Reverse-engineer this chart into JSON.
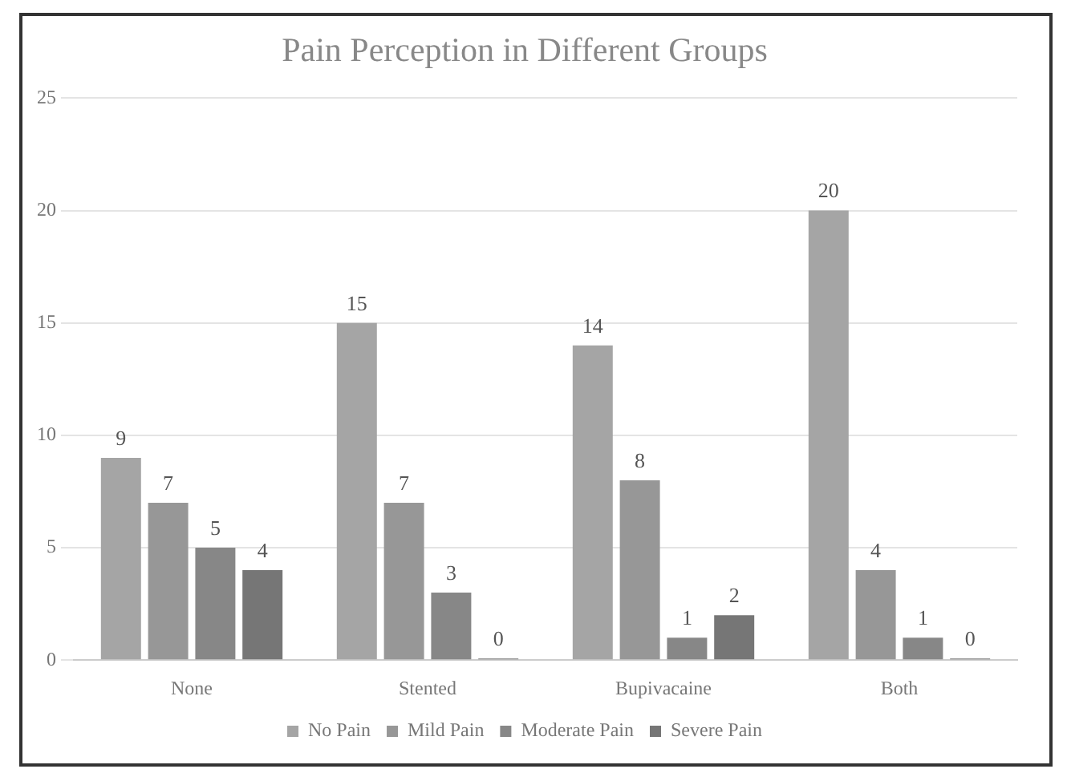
{
  "chart_data": {
    "type": "bar",
    "title": "Pain Perception in Different Groups",
    "categories": [
      "None",
      "Stented",
      "Bupivacaine",
      "Both"
    ],
    "series": [
      {
        "name": "No Pain",
        "color": "#a5a5a5",
        "values": [
          9,
          15,
          14,
          20
        ]
      },
      {
        "name": "Mild Pain",
        "color": "#979797",
        "values": [
          7,
          7,
          8,
          4
        ]
      },
      {
        "name": "Moderate Pain",
        "color": "#878787",
        "values": [
          5,
          3,
          1,
          1
        ]
      },
      {
        "name": "Severe Pain",
        "color": "#767676",
        "values": [
          4,
          0,
          2,
          0
        ]
      }
    ],
    "ylim": [
      0,
      25
    ],
    "yticks": [
      0,
      5,
      10,
      15,
      20,
      25
    ],
    "grid": "y",
    "legend": "bottom",
    "data_labels": true
  }
}
